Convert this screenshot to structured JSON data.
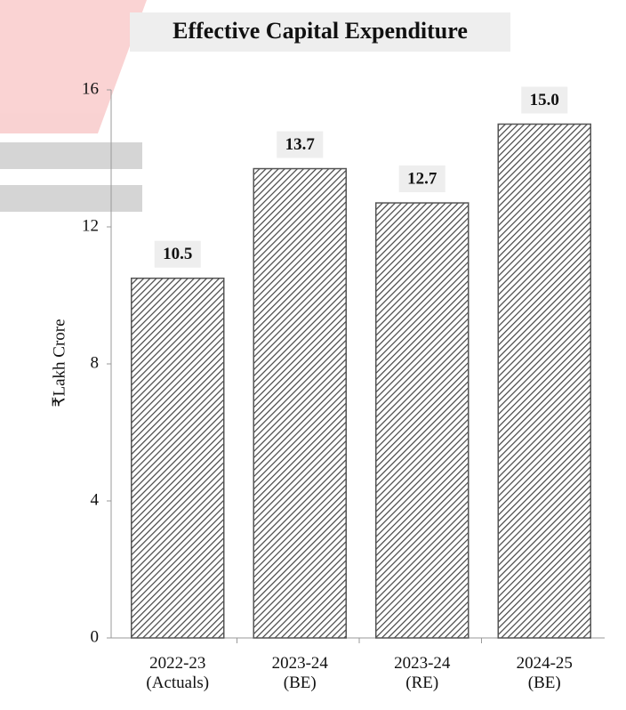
{
  "chart_data": {
    "type": "bar",
    "title": "Effective Capital Expenditure",
    "y_label": "₹Lakh Crore",
    "categories": [
      "2022-23\n(Actuals)",
      "2023-24\n(BE)",
      "2023-24\n(RE)",
      "2024-25\n(BE)"
    ],
    "values": [
      10.5,
      13.7,
      12.7,
      15
    ],
    "value_labels": [
      "10.5",
      "13.7",
      "12.7",
      "15.0"
    ],
    "color": "#555555",
    "ylim": [
      0,
      16
    ],
    "yticks": [
      0,
      4,
      8,
      12,
      16
    ],
    "grid": false
  }
}
